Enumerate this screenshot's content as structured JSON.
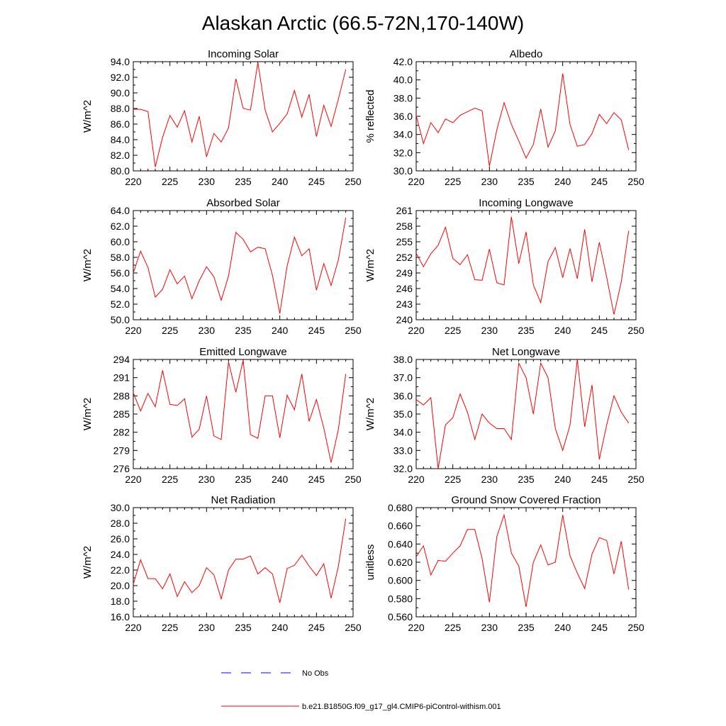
{
  "title": "Alaskan Arctic (66.5-72N,170-140W)",
  "colors": {
    "series": "#ff0000",
    "no_obs": "#0000ff",
    "axis": "#000000"
  },
  "legend": {
    "items": [
      {
        "label": "No Obs",
        "style": "dashed",
        "color": "#0000ff"
      },
      {
        "label": "b.e21.B1850G.f09_g17_gl4.CMIP6-piControl-withism.001",
        "style": "solid",
        "color": "#ff0000"
      }
    ]
  },
  "chart_data": [
    {
      "type": "line",
      "id": "incoming-solar",
      "title": "Incoming Solar",
      "ylabel": "W/m^2",
      "xlim": [
        220,
        250
      ],
      "xticks": [
        "220",
        "225",
        "230",
        "235",
        "240",
        "245",
        "250"
      ],
      "ylim": [
        80,
        94
      ],
      "yticks": [
        "80.0",
        "82.0",
        "84.0",
        "86.0",
        "88.0",
        "90.0",
        "92.0",
        "94.0"
      ],
      "x": [
        220,
        221,
        222,
        223,
        224,
        225,
        226,
        227,
        228,
        229,
        230,
        231,
        232,
        233,
        234,
        235,
        236,
        237,
        238,
        239,
        240,
        241,
        242,
        243,
        244,
        245,
        246,
        247,
        248,
        249
      ],
      "values": [
        87.9,
        87.9,
        87.6,
        80.5,
        84.3,
        87.1,
        85.6,
        87.7,
        83.7,
        87.0,
        81.8,
        84.8,
        83.7,
        85.5,
        91.8,
        88.0,
        87.8,
        93.9,
        87.8,
        85.0,
        86.1,
        87.3,
        90.3,
        86.9,
        89.8,
        84.4,
        88.4,
        85.7,
        89.2,
        93.0
      ]
    },
    {
      "type": "line",
      "id": "albedo",
      "title": "Albedo",
      "ylabel": "% reflected",
      "xlim": [
        220,
        250
      ],
      "xticks": [
        "220",
        "225",
        "230",
        "235",
        "240",
        "245",
        "250"
      ],
      "ylim": [
        30,
        42
      ],
      "yticks": [
        "30.0",
        "32.0",
        "34.0",
        "36.0",
        "38.0",
        "40.0",
        "42.0"
      ],
      "x": [
        220,
        221,
        222,
        223,
        224,
        225,
        226,
        227,
        228,
        229,
        230,
        231,
        232,
        233,
        234,
        235,
        236,
        237,
        238,
        239,
        240,
        241,
        242,
        243,
        244,
        245,
        246,
        247,
        248,
        249
      ],
      "values": [
        36.1,
        33.0,
        35.3,
        34.2,
        35.7,
        35.3,
        36.1,
        36.5,
        36.9,
        36.6,
        30.5,
        34.5,
        37.5,
        35.1,
        33.3,
        31.4,
        32.9,
        36.8,
        32.6,
        34.4,
        40.7,
        35.1,
        32.7,
        32.9,
        34.1,
        36.2,
        35.2,
        36.4,
        35.6,
        32.3
      ]
    },
    {
      "type": "line",
      "id": "absorbed-solar",
      "title": "Absorbed Solar",
      "ylabel": "W/m^2",
      "xlim": [
        220,
        250
      ],
      "xticks": [
        "220",
        "225",
        "230",
        "235",
        "240",
        "245",
        "250"
      ],
      "ylim": [
        50,
        64
      ],
      "yticks": [
        "50.0",
        "52.0",
        "54.0",
        "56.0",
        "58.0",
        "60.0",
        "62.0",
        "64.0"
      ],
      "x": [
        220,
        221,
        222,
        223,
        224,
        225,
        226,
        227,
        228,
        229,
        230,
        231,
        232,
        233,
        234,
        235,
        236,
        237,
        238,
        239,
        240,
        241,
        242,
        243,
        244,
        245,
        246,
        247,
        248,
        249
      ],
      "values": [
        56.0,
        58.8,
        56.7,
        52.9,
        53.9,
        56.4,
        54.6,
        55.6,
        52.7,
        55.0,
        56.8,
        55.5,
        52.5,
        55.6,
        61.2,
        60.3,
        58.7,
        59.3,
        59.1,
        55.7,
        50.8,
        56.9,
        60.6,
        58.2,
        59.1,
        53.8,
        57.2,
        54.4,
        57.7,
        63.1
      ]
    },
    {
      "type": "line",
      "id": "incoming-longwave",
      "title": "Incoming Longwave",
      "ylabel": "W/m^2",
      "xlim": [
        220,
        250
      ],
      "xticks": [
        "220",
        "225",
        "230",
        "235",
        "240",
        "245",
        "250"
      ],
      "ylim": [
        240,
        261
      ],
      "yticks": [
        "240",
        "243",
        "246",
        "249",
        "252",
        "255",
        "258",
        "261"
      ],
      "x": [
        220,
        221,
        222,
        223,
        224,
        225,
        226,
        227,
        228,
        229,
        230,
        231,
        232,
        233,
        234,
        235,
        236,
        237,
        238,
        239,
        240,
        241,
        242,
        243,
        244,
        245,
        246,
        247,
        248,
        249
      ],
      "values": [
        252.8,
        250.2,
        252.7,
        254.3,
        257.8,
        251.8,
        250.6,
        252.5,
        247.7,
        247.6,
        253.6,
        247.1,
        246.7,
        259.8,
        250.8,
        256.9,
        246.7,
        243.3,
        251.2,
        253.9,
        248.1,
        253.7,
        247.9,
        257.4,
        247.3,
        254.9,
        248.2,
        241.0,
        247.3,
        257.1
      ]
    },
    {
      "type": "line",
      "id": "emitted-longwave",
      "title": "Emitted Longwave",
      "ylabel": "W/m^2",
      "xlim": [
        220,
        250
      ],
      "xticks": [
        "220",
        "225",
        "230",
        "235",
        "240",
        "245",
        "250"
      ],
      "ylim": [
        276,
        294
      ],
      "yticks": [
        "276",
        "279",
        "282",
        "285",
        "288",
        "291",
        "294"
      ],
      "x": [
        220,
        221,
        222,
        223,
        224,
        225,
        226,
        227,
        228,
        229,
        230,
        231,
        232,
        233,
        234,
        235,
        236,
        237,
        238,
        239,
        240,
        241,
        242,
        243,
        244,
        245,
        246,
        247,
        248,
        249
      ],
      "values": [
        288.5,
        285.5,
        288.4,
        286.2,
        292.2,
        286.6,
        286.4,
        287.5,
        281.2,
        282.5,
        288.0,
        281.4,
        280.8,
        293.6,
        288.6,
        293.9,
        281.6,
        281.0,
        288.0,
        288.0,
        281.1,
        288.1,
        285.7,
        291.6,
        283.8,
        287.4,
        282.7,
        277.0,
        282.5,
        291.6
      ]
    },
    {
      "type": "line",
      "id": "net-longwave",
      "title": "Net Longwave",
      "ylabel": "W/m^2",
      "xlim": [
        220,
        250
      ],
      "xticks": [
        "220",
        "225",
        "230",
        "235",
        "240",
        "245",
        "250"
      ],
      "ylim": [
        32,
        38
      ],
      "yticks": [
        "32.0",
        "33.0",
        "34.0",
        "35.0",
        "36.0",
        "37.0",
        "38.0"
      ],
      "x": [
        220,
        221,
        222,
        223,
        224,
        225,
        226,
        227,
        228,
        229,
        230,
        231,
        232,
        233,
        234,
        235,
        236,
        237,
        238,
        239,
        240,
        241,
        242,
        243,
        244,
        245,
        246,
        247,
        248,
        249
      ],
      "values": [
        35.8,
        35.5,
        35.9,
        32.0,
        34.4,
        34.8,
        36.1,
        35.1,
        33.6,
        35.0,
        34.5,
        34.2,
        34.2,
        33.6,
        37.8,
        37.0,
        35.0,
        37.8,
        37.0,
        34.2,
        33.0,
        34.4,
        38.0,
        34.3,
        36.6,
        32.5,
        34.4,
        36.0,
        35.1,
        34.5
      ]
    },
    {
      "type": "line",
      "id": "net-radiation",
      "title": "Net Radiation",
      "ylabel": "W/m^2",
      "xlim": [
        220,
        250
      ],
      "xticks": [
        "220",
        "225",
        "230",
        "235",
        "240",
        "245",
        "250"
      ],
      "ylim": [
        16,
        30
      ],
      "yticks": [
        "16.0",
        "18.0",
        "20.0",
        "22.0",
        "24.0",
        "26.0",
        "28.0",
        "30.0"
      ],
      "x": [
        220,
        221,
        222,
        223,
        224,
        225,
        226,
        227,
        228,
        229,
        230,
        231,
        232,
        233,
        234,
        235,
        236,
        237,
        238,
        239,
        240,
        241,
        242,
        243,
        244,
        245,
        246,
        247,
        248,
        249
      ],
      "values": [
        20.2,
        23.3,
        20.9,
        20.9,
        19.6,
        21.5,
        18.6,
        20.5,
        19.1,
        20.0,
        22.3,
        21.4,
        18.3,
        22.0,
        23.4,
        23.4,
        23.8,
        21.5,
        22.3,
        21.5,
        17.8,
        22.2,
        22.6,
        23.9,
        22.5,
        21.3,
        22.8,
        18.4,
        22.5,
        28.6
      ]
    },
    {
      "type": "line",
      "id": "ground-snow-covered-fraction",
      "title": "Ground Snow Covered Fraction",
      "ylabel": "unitless",
      "xlim": [
        220,
        250
      ],
      "xticks": [
        "220",
        "225",
        "230",
        "235",
        "240",
        "245",
        "250"
      ],
      "ylim": [
        0.56,
        0.68
      ],
      "yticks": [
        "0.560",
        "0.580",
        "0.600",
        "0.620",
        "0.640",
        "0.660",
        "0.680"
      ],
      "x": [
        220,
        221,
        222,
        223,
        224,
        225,
        226,
        227,
        228,
        229,
        230,
        231,
        232,
        233,
        234,
        235,
        236,
        237,
        238,
        239,
        240,
        241,
        242,
        243,
        244,
        245,
        246,
        247,
        248,
        249
      ],
      "values": [
        0.626,
        0.638,
        0.606,
        0.622,
        0.621,
        0.63,
        0.638,
        0.656,
        0.656,
        0.624,
        0.576,
        0.648,
        0.672,
        0.63,
        0.616,
        0.571,
        0.62,
        0.639,
        0.617,
        0.62,
        0.672,
        0.627,
        0.608,
        0.591,
        0.629,
        0.647,
        0.644,
        0.607,
        0.643,
        0.59
      ]
    }
  ]
}
